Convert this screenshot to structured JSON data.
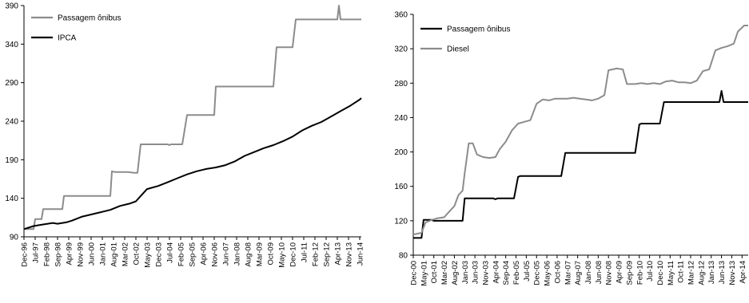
{
  "chart_data": [
    {
      "type": "line",
      "ylim": [
        90,
        390
      ],
      "yticks": [
        90,
        140,
        190,
        240,
        290,
        340,
        390
      ],
      "xlim": [
        "1996-12",
        "2014-07"
      ],
      "xtick_labels": [
        "Dec-96",
        "Jul-97",
        "Feb-98",
        "Sep-98",
        "Apr-99",
        "Nov-99",
        "Jun-00",
        "Jan-01",
        "Aug-01",
        "Mar-02",
        "Oct-02",
        "May-03",
        "Dec-03",
        "Jul-04",
        "Feb-05",
        "Sep-05",
        "Apr-06",
        "Nov-06",
        "Jun-07",
        "Jan-08",
        "Aug-08",
        "Mar-09",
        "Oct-09",
        "May-10",
        "Dec-10",
        "Jul-11",
        "Feb-12",
        "Sep-12",
        "Apr-13",
        "Nov-13",
        "Jun-14"
      ],
      "legend_position": "top-left",
      "grid": false,
      "series": [
        {
          "name": "Passagem ônibus",
          "color": "#8c8c8c",
          "points": [
            [
              "1996-12",
              100
            ],
            [
              "1997-06",
              100
            ],
            [
              "1997-07",
              113
            ],
            [
              "1997-11",
              113
            ],
            [
              "1997-12",
              126
            ],
            [
              "1998-12",
              126
            ],
            [
              "1999-01",
              143
            ],
            [
              "2001-06",
              143
            ],
            [
              "2001-07",
              175
            ],
            [
              "2001-09",
              174
            ],
            [
              "2002-05",
              174
            ],
            [
              "2002-09",
              173
            ],
            [
              "2002-11",
              173
            ],
            [
              "2003-01",
              210
            ],
            [
              "2004-06",
              210
            ],
            [
              "2004-07",
              209
            ],
            [
              "2004-08",
              210
            ],
            [
              "2005-03",
              210
            ],
            [
              "2005-06",
              248
            ],
            [
              "2006-11",
              248
            ],
            [
              "2006-12",
              285
            ],
            [
              "2009-12",
              285
            ],
            [
              "2010-02",
              336
            ],
            [
              "2010-12",
              336
            ],
            [
              "2011-02",
              372
            ],
            [
              "2013-04",
              372
            ],
            [
              "2013-05",
              390
            ],
            [
              "2013-06",
              372
            ],
            [
              "2014-07",
              372
            ]
          ]
        },
        {
          "name": "IPCA",
          "color": "#000000",
          "points": [
            [
              "1996-12",
              100
            ],
            [
              "1997-06",
              104
            ],
            [
              "1997-12",
              106
            ],
            [
              "1998-06",
              108
            ],
            [
              "1998-09",
              107
            ],
            [
              "1998-12",
              108
            ],
            [
              "1999-03",
              109
            ],
            [
              "1999-06",
              111
            ],
            [
              "1999-12",
              116
            ],
            [
              "2000-06",
              119
            ],
            [
              "2000-12",
              122
            ],
            [
              "2001-06",
              125
            ],
            [
              "2001-12",
              130
            ],
            [
              "2002-06",
              133
            ],
            [
              "2002-10",
              136
            ],
            [
              "2003-01",
              143
            ],
            [
              "2003-05",
              152
            ],
            [
              "2003-12",
              156
            ],
            [
              "2004-06",
              161
            ],
            [
              "2004-12",
              166
            ],
            [
              "2005-06",
              171
            ],
            [
              "2005-12",
              175
            ],
            [
              "2006-06",
              178
            ],
            [
              "2006-12",
              180
            ],
            [
              "2007-06",
              183
            ],
            [
              "2007-12",
              188
            ],
            [
              "2008-06",
              195
            ],
            [
              "2008-12",
              200
            ],
            [
              "2009-06",
              205
            ],
            [
              "2009-12",
              209
            ],
            [
              "2010-06",
              214
            ],
            [
              "2010-12",
              220
            ],
            [
              "2011-06",
              228
            ],
            [
              "2011-12",
              234
            ],
            [
              "2012-06",
              239
            ],
            [
              "2012-12",
              246
            ],
            [
              "2013-06",
              253
            ],
            [
              "2013-12",
              260
            ],
            [
              "2014-06",
              268
            ],
            [
              "2014-07",
              270
            ]
          ]
        }
      ]
    },
    {
      "type": "line",
      "ylim": [
        80,
        360
      ],
      "yticks": [
        80,
        120,
        160,
        200,
        240,
        280,
        320,
        360
      ],
      "xlim": [
        "2000-12",
        "2014-07"
      ],
      "xtick_labels": [
        "Dec-00",
        "May-01",
        "Oct-01",
        "Mar-02",
        "Aug-02",
        "Jan-03",
        "Jun-03",
        "Nov-03",
        "Apr-04",
        "Sep-04",
        "Feb-05",
        "Jul-05",
        "Dec-05",
        "May-06",
        "Oct-06",
        "Mar-07",
        "Aug-07",
        "Jan-08",
        "Jun-08",
        "Nov-08",
        "Apr-09",
        "Sep-09",
        "Feb-10",
        "Jul-10",
        "Dec-10",
        "May-11",
        "Oct-11",
        "Mar-12",
        "Aug-12",
        "Jan-13",
        "Jun-13",
        "Nov-13",
        "Apr-14"
      ],
      "legend_position": "top-left",
      "grid": false,
      "series": [
        {
          "name": "Passagem ônibus",
          "color": "#000000",
          "points": [
            [
              "2000-12",
              100
            ],
            [
              "2001-04",
              100
            ],
            [
              "2001-05",
              121
            ],
            [
              "2001-09",
              121
            ],
            [
              "2001-10",
              120
            ],
            [
              "2002-12",
              120
            ],
            [
              "2003-01",
              146
            ],
            [
              "2004-03",
              146
            ],
            [
              "2004-04",
              145
            ],
            [
              "2004-05",
              146
            ],
            [
              "2005-01",
              146
            ],
            [
              "2005-03",
              171
            ],
            [
              "2005-04",
              172
            ],
            [
              "2006-12",
              172
            ],
            [
              "2007-02",
              199
            ],
            [
              "2009-12",
              199
            ],
            [
              "2010-02",
              232
            ],
            [
              "2010-03",
              233
            ],
            [
              "2010-12",
              233
            ],
            [
              "2011-02",
              258
            ],
            [
              "2013-05",
              258
            ],
            [
              "2013-06",
              271
            ],
            [
              "2013-07",
              258
            ],
            [
              "2014-07",
              258
            ]
          ]
        },
        {
          "name": "Diesel",
          "color": "#8c8c8c",
          "points": [
            [
              "2000-12",
              104
            ],
            [
              "2001-04",
              106
            ],
            [
              "2001-06",
              118
            ],
            [
              "2001-09",
              121
            ],
            [
              "2001-12",
              123
            ],
            [
              "2002-03",
              124
            ],
            [
              "2002-06",
              132
            ],
            [
              "2002-08",
              137
            ],
            [
              "2002-10",
              150
            ],
            [
              "2002-12",
              155
            ],
            [
              "2003-01",
              175
            ],
            [
              "2003-03",
              210
            ],
            [
              "2003-05",
              210
            ],
            [
              "2003-07",
              197
            ],
            [
              "2003-10",
              194
            ],
            [
              "2004-01",
              193
            ],
            [
              "2004-04",
              194
            ],
            [
              "2004-06",
              203
            ],
            [
              "2004-09",
              212
            ],
            [
              "2004-12",
              225
            ],
            [
              "2005-03",
              233
            ],
            [
              "2005-06",
              235
            ],
            [
              "2005-09",
              237
            ],
            [
              "2005-12",
              256
            ],
            [
              "2006-03",
              261
            ],
            [
              "2006-06",
              260
            ],
            [
              "2006-09",
              262
            ],
            [
              "2006-12",
              262
            ],
            [
              "2007-03",
              262
            ],
            [
              "2007-06",
              263
            ],
            [
              "2007-09",
              262
            ],
            [
              "2007-12",
              261
            ],
            [
              "2008-03",
              260
            ],
            [
              "2008-06",
              262
            ],
            [
              "2008-09",
              266
            ],
            [
              "2008-11",
              295
            ],
            [
              "2009-01",
              296
            ],
            [
              "2009-03",
              297
            ],
            [
              "2009-06",
              296
            ],
            [
              "2009-08",
              279
            ],
            [
              "2009-12",
              279
            ],
            [
              "2010-03",
              280
            ],
            [
              "2010-06",
              279
            ],
            [
              "2010-09",
              280
            ],
            [
              "2010-12",
              279
            ],
            [
              "2011-03",
              282
            ],
            [
              "2011-06",
              283
            ],
            [
              "2011-09",
              281
            ],
            [
              "2011-12",
              281
            ],
            [
              "2012-03",
              280
            ],
            [
              "2012-06",
              283
            ],
            [
              "2012-09",
              294
            ],
            [
              "2012-12",
              296
            ],
            [
              "2013-03",
              318
            ],
            [
              "2013-06",
              321
            ],
            [
              "2013-09",
              323
            ],
            [
              "2013-12",
              326
            ],
            [
              "2014-02",
              340
            ],
            [
              "2014-05",
              347
            ],
            [
              "2014-07",
              347
            ]
          ]
        }
      ]
    }
  ]
}
